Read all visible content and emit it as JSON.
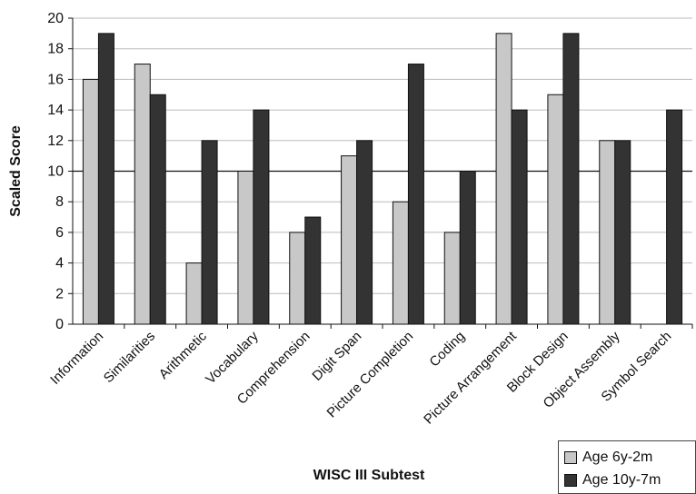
{
  "chart_data": {
    "type": "bar",
    "title": "",
    "xlabel": "WISC III Subtest",
    "ylabel": "Scaled Score",
    "ylim": [
      0,
      20
    ],
    "yticks": [
      0,
      2,
      4,
      6,
      8,
      10,
      12,
      14,
      16,
      18,
      20
    ],
    "reference_line": 10,
    "grid": true,
    "legend_position": "bottom-right",
    "categories": [
      "Information",
      "Similarities",
      "Arithmetic",
      "Vocabulary",
      "Comprehension",
      "Digit Span",
      "Picture Completion",
      "Coding",
      "Picture Arrangement",
      "Block Design",
      "Object Assembly",
      "Symbol Search"
    ],
    "series": [
      {
        "name": "Age 6y-2m",
        "color": "#c8c8c8",
        "values": [
          16,
          17,
          4,
          10,
          6,
          11,
          8,
          6,
          19,
          15,
          12,
          null
        ]
      },
      {
        "name": "Age 10y-7m",
        "color": "#333333",
        "values": [
          19,
          15,
          12,
          14,
          7,
          12,
          17,
          10,
          14,
          19,
          12,
          14
        ]
      }
    ]
  }
}
